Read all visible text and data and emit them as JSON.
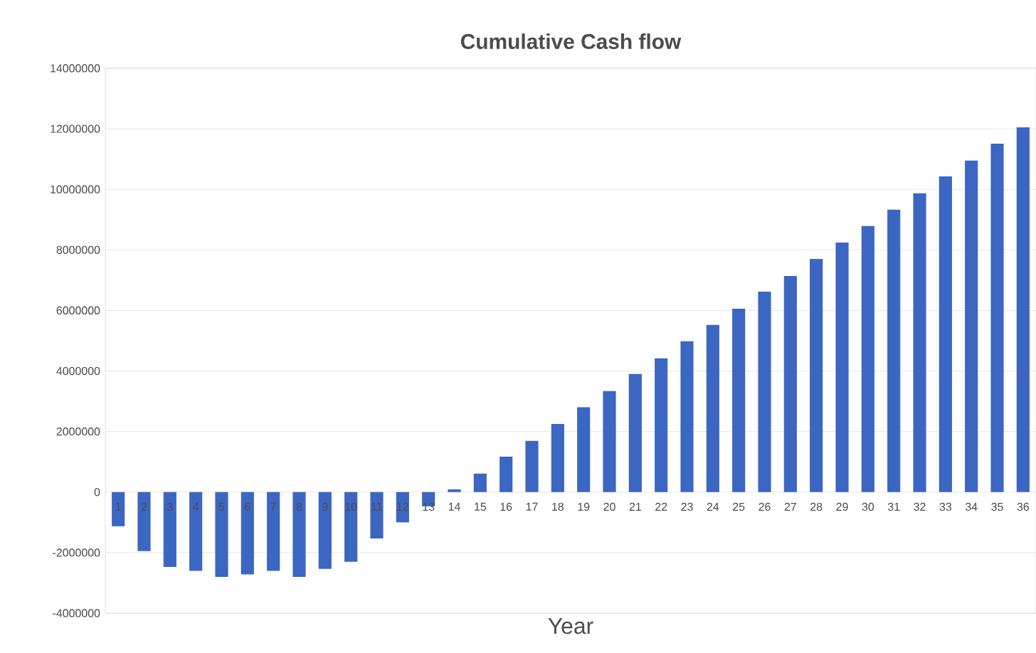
{
  "chart_data": {
    "type": "bar",
    "title": "Cumulative Cash flow",
    "xlabel": "Year",
    "categories": [
      "1",
      "2",
      "3",
      "4",
      "5",
      "6",
      "7",
      "8",
      "9",
      "10",
      "11",
      "12",
      "13",
      "14",
      "15",
      "16",
      "17",
      "18",
      "19",
      "20",
      "21",
      "22",
      "23",
      "24",
      "25",
      "26",
      "27",
      "28",
      "29",
      "30",
      "31",
      "32",
      "33",
      "34",
      "35",
      "36"
    ],
    "values": [
      -1130000,
      -1950000,
      -2470000,
      -2600000,
      -2800000,
      -2720000,
      -2600000,
      -2800000,
      -2540000,
      -2300000,
      -1530000,
      -1000000,
      -470000,
      90000,
      610000,
      1170000,
      1690000,
      2250000,
      2800000,
      3340000,
      3900000,
      4420000,
      4980000,
      5520000,
      6060000,
      6620000,
      7140000,
      7700000,
      8240000,
      8790000,
      9330000,
      9870000,
      10430000,
      10950000,
      11510000,
      12050000
    ],
    "color": "#3b66c2",
    "ylim": [
      -4000000,
      14000000
    ],
    "yticks": [
      -4000000,
      -2000000,
      0,
      2000000,
      4000000,
      6000000,
      8000000,
      10000000,
      12000000,
      14000000
    ],
    "grid": "y"
  }
}
